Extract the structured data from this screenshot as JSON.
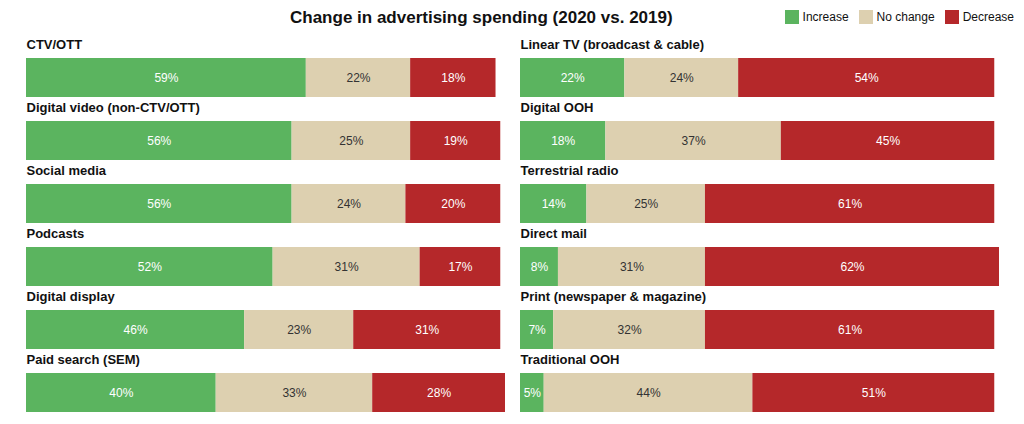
{
  "chart_data": {
    "type": "bar",
    "title": "Change in advertising spending (2020 vs. 2019)",
    "orientation": "horizontal",
    "stacked": true,
    "data_labels": true,
    "tick_labels": false,
    "legend": "top-right",
    "xlim": [
      0,
      101
    ],
    "categories": [
      "CTV/OTT",
      "Digital video (non-CTV/OTT)",
      "Social media",
      "Podcasts",
      "Digital display",
      "Paid search (SEM)",
      "Linear TV (broadcast & cable)",
      "Digital OOH",
      "Terrestrial radio",
      "Direct mail",
      "Print (newspaper & magazine)",
      "Traditional OOH"
    ],
    "series": [
      {
        "name": "Increase",
        "color": "#5bb45f",
        "values": [
          59,
          56,
          56,
          52,
          46,
          40,
          22,
          18,
          14,
          8,
          7,
          5
        ],
        "value_labels": [
          "59%",
          "56%",
          "56%",
          "52%",
          "46%",
          "40%",
          "22%",
          "18%",
          "14%",
          "8%",
          "7%",
          "5%"
        ]
      },
      {
        "name": "No change",
        "color": "#ddd0b0",
        "values": [
          22,
          25,
          24,
          31,
          23,
          33,
          24,
          37,
          25,
          31,
          32,
          44
        ],
        "value_labels": [
          "22%",
          "25%",
          "24%",
          "31%",
          "23%",
          "33%",
          "24%",
          "37%",
          "25%",
          "31%",
          "32%",
          "44%"
        ]
      },
      {
        "name": "Decrease",
        "color": "#b5282a",
        "values": [
          18,
          19,
          20,
          17,
          31,
          28,
          54,
          45,
          61,
          62,
          61,
          51
        ],
        "value_labels": [
          "18%",
          "19%",
          "20%",
          "17%",
          "31%",
          "28%",
          "54%",
          "45%",
          "61%",
          "62%",
          "61%",
          "51%"
        ]
      }
    ]
  }
}
